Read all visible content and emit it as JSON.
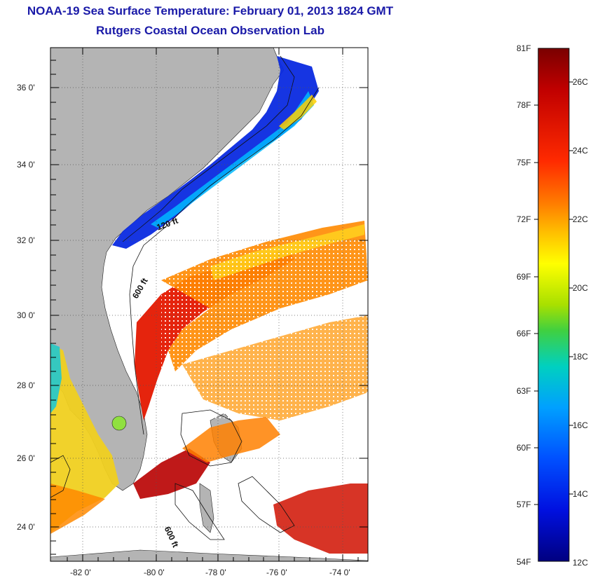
{
  "title": "NOAA-19 Sea Surface Temperature:  February 01, 2013 1824 GMT",
  "subtitle": "Rutgers Coastal Ocean Observation Lab",
  "latitude_labels": [
    "36 0'",
    "34 0'",
    "32 0'",
    "30 0'",
    "28 0'",
    "26 0'",
    "24 0'"
  ],
  "longitude_labels": [
    "-82 0'",
    "-80 0'",
    "-78 0'",
    "-76 0'",
    "-74 0'"
  ],
  "depth_contours": [
    "120 ft",
    "600 ft",
    "600 ft"
  ],
  "colorbar": {
    "fahrenheit_labels": [
      "81F",
      "78F",
      "75F",
      "72F",
      "69F",
      "66F",
      "63F",
      "60F",
      "57F",
      "54F"
    ],
    "celsius_labels": [
      "26C",
      "24C",
      "22C",
      "20C",
      "18C",
      "16C",
      "14C",
      "12C"
    ],
    "colors": [
      "#7a0000",
      "#c00000",
      "#ff2a00",
      "#ff7a00",
      "#ffc000",
      "#ffff00",
      "#a8e000",
      "#40d040",
      "#00d0c0",
      "#00a0ff",
      "#0050ff",
      "#0010e0",
      "#000080"
    ]
  }
}
